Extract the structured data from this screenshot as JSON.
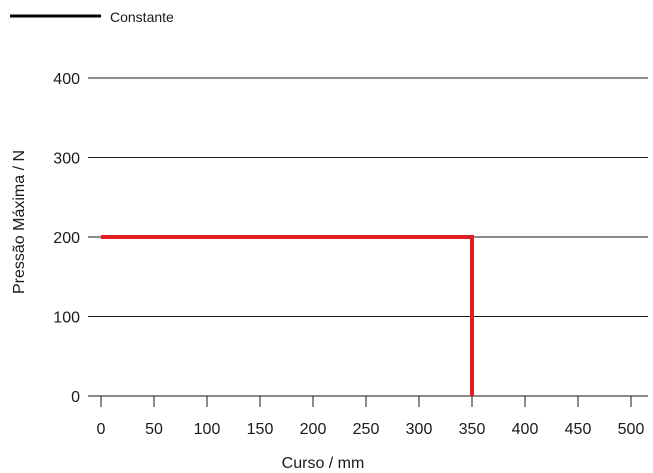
{
  "chart_data": {
    "type": "line",
    "title": "",
    "xlabel": "Curso / mm",
    "ylabel": "Pressão Máxima / N",
    "xlim": [
      0,
      500
    ],
    "ylim": [
      0,
      400
    ],
    "x_ticks": [
      0,
      50,
      100,
      150,
      200,
      250,
      300,
      350,
      400,
      450,
      500
    ],
    "y_ticks": [
      0,
      100,
      200,
      300,
      400
    ],
    "grid": "horizontal",
    "legend": {
      "placement": "top-left",
      "entries": [
        {
          "label": "Constante",
          "color": "#000000"
        }
      ]
    },
    "series": [
      {
        "color": "#e02020",
        "points": [
          {
            "x": 0,
            "y": 200
          },
          {
            "x": 350,
            "y": 200
          },
          {
            "x": 350,
            "y": 0
          }
        ]
      }
    ]
  }
}
